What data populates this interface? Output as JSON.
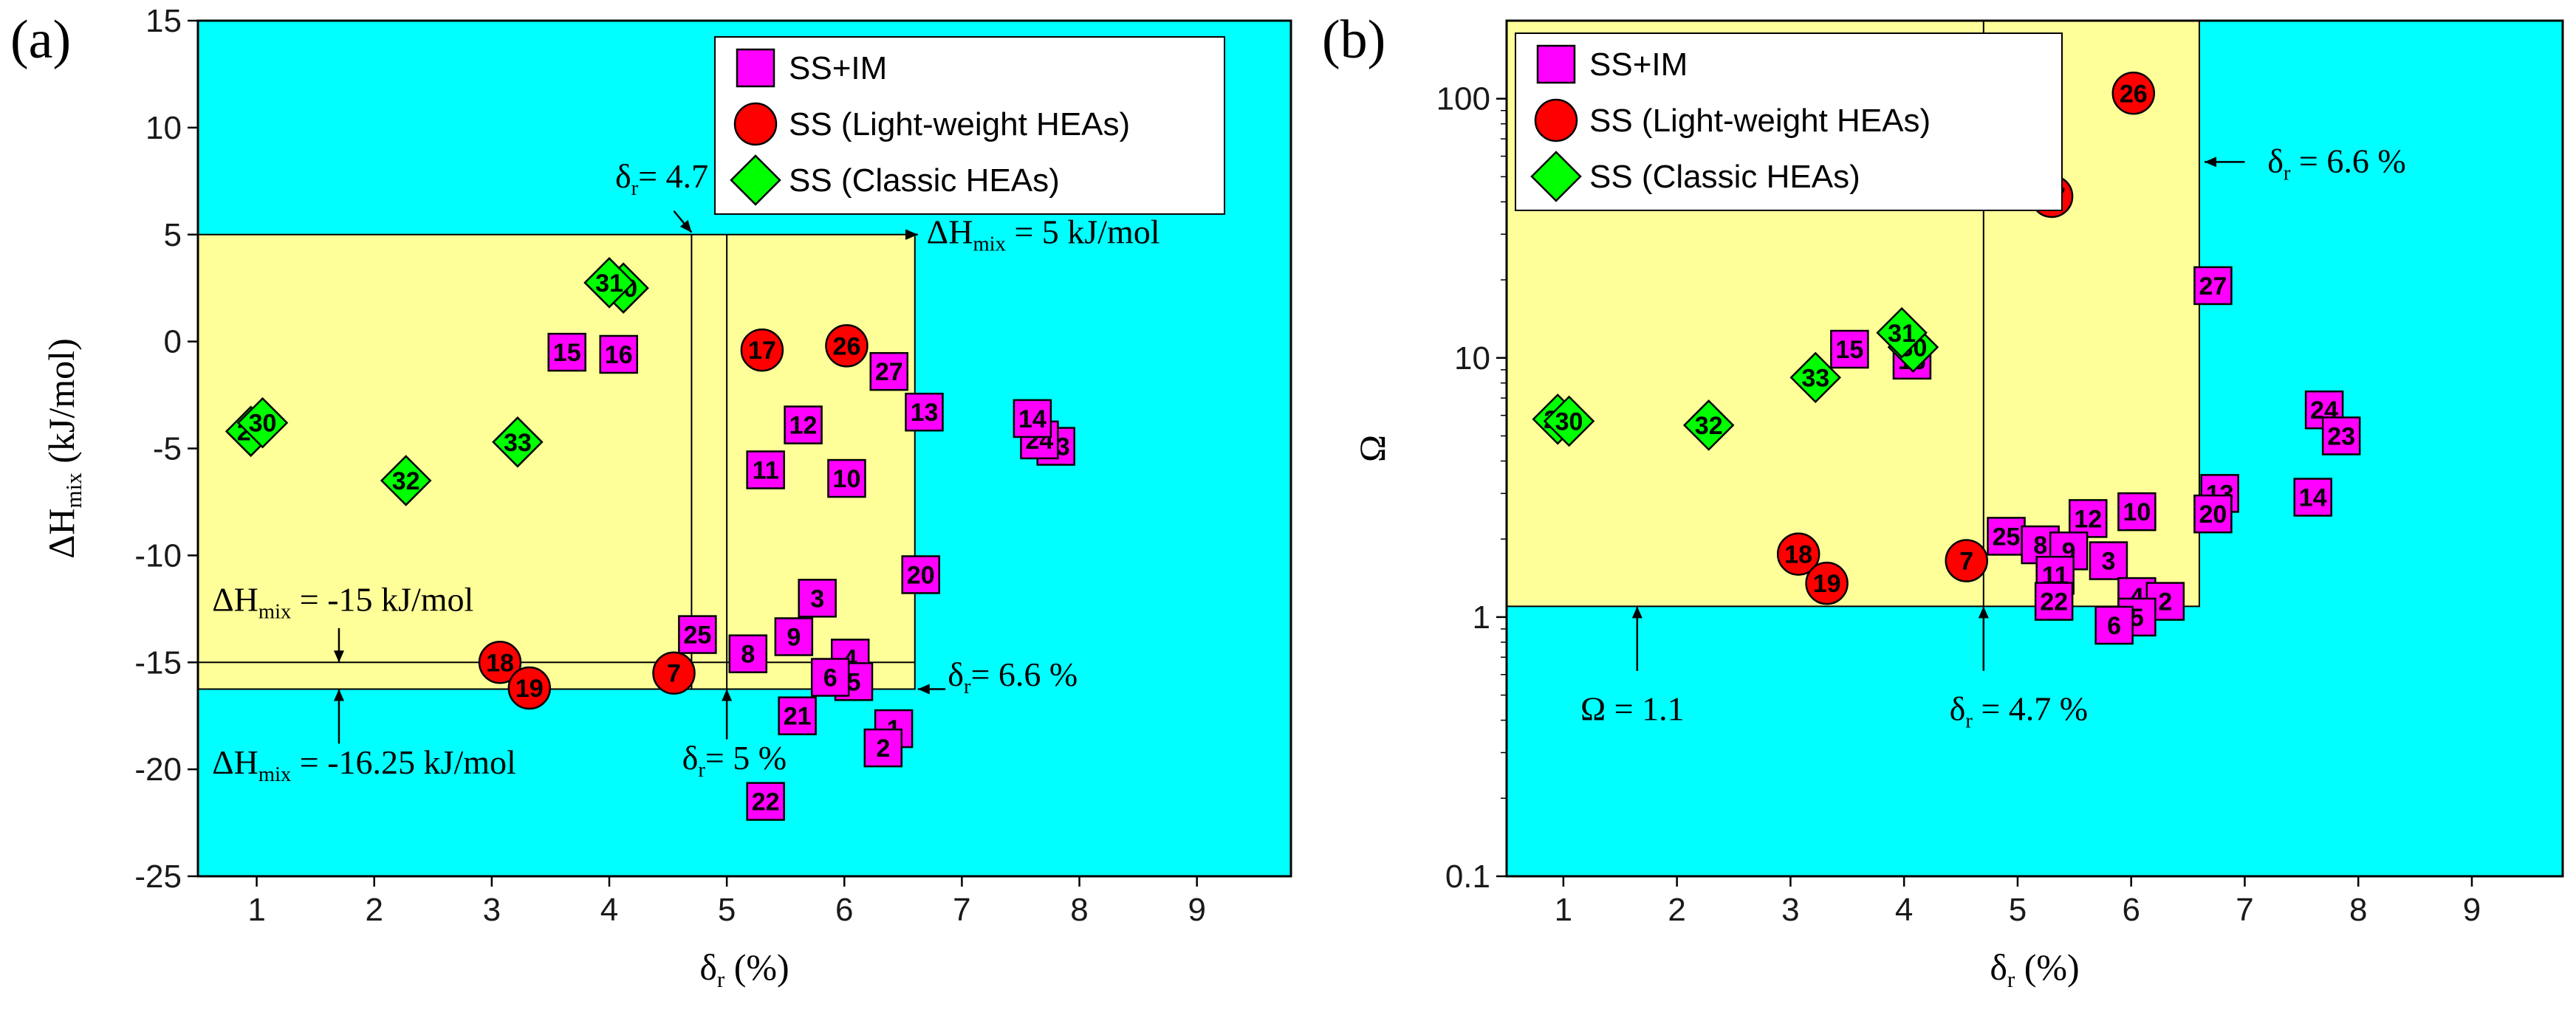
{
  "chart_data": [
    {
      "id": "a",
      "type": "scatter",
      "panel_label": "(a)",
      "xlabel_main": "δ",
      "xlabel_sub": "r",
      "xlabel_tail": " (%)",
      "ylabel_main": "ΔH",
      "ylabel_sub": "mix",
      "ylabel_tail": " (kJ/mol)",
      "xlim": [
        0.5,
        9.8
      ],
      "ylim": [
        -25,
        15
      ],
      "yscale": "linear",
      "xticks": [
        1,
        2,
        3,
        4,
        5,
        6,
        7,
        8,
        9
      ],
      "yticks": [
        15,
        10,
        5,
        0,
        -5,
        -10,
        -15,
        -20,
        -25
      ],
      "colors": {
        "background": "#00ffff",
        "region": "#ffff99",
        "ss_im": "#ff00ff",
        "ss_light": "#ff0000",
        "ss_classic": "#00ff00"
      },
      "legend": {
        "position": "top-right",
        "entries": [
          {
            "key": "ss_im",
            "label": "SS+IM",
            "marker": "square"
          },
          {
            "key": "ss_light",
            "label": "SS (Light-weight HEAs)",
            "marker": "circle"
          },
          {
            "key": "ss_classic",
            "label": "SS (Classic HEAs)",
            "marker": "diamond"
          }
        ]
      },
      "region": {
        "x": [
          0.5,
          6.6
        ],
        "y": [
          -16.25,
          5
        ]
      },
      "lines": [
        {
          "orient": "v",
          "value": 4.7,
          "range": [
            -16.25,
            5
          ]
        },
        {
          "orient": "v",
          "value": 5.0,
          "range": [
            -16.25,
            5
          ]
        },
        {
          "orient": "h",
          "value": -15,
          "range": [
            0.5,
            6.6
          ]
        }
      ],
      "annotations": [
        {
          "id": "dr47",
          "main": "δ",
          "sub": "r",
          "tail": "= 4.7 %",
          "at": [
            4.05,
            7.2
          ],
          "arrow_from": [
            4.55,
            6.1
          ],
          "arrow_to": [
            4.7,
            5.1
          ]
        },
        {
          "id": "dh5",
          "main": "ΔH",
          "sub": "mix",
          "tail": " = 5 kJ/mol",
          "at": [
            6.7,
            4.6
          ],
          "arrow_from": [
            6.6,
            5.0
          ],
          "arrow_to": [
            6.62,
            5.0
          ],
          "arrow_left_to": 6.6
        },
        {
          "id": "dh15",
          "main": "ΔH",
          "sub": "mix",
          "tail": " = -15 kJ/mol",
          "at": [
            0.62,
            -12.6
          ],
          "arrow_from": [
            1.7,
            -13.4
          ],
          "arrow_to": [
            1.7,
            -15
          ]
        },
        {
          "id": "dh1625",
          "main": "ΔH",
          "sub": "mix",
          "tail": " = -16.25 kJ/mol",
          "at": [
            0.62,
            -20.2
          ],
          "arrow_from": [
            1.7,
            -18.8
          ],
          "arrow_to": [
            1.7,
            -16.25
          ]
        },
        {
          "id": "dr5",
          "main": "δ",
          "sub": "r",
          "tail": "= 5 %",
          "at": [
            4.62,
            -20.0
          ],
          "arrow_from": [
            5.0,
            -18.6
          ],
          "arrow_to": [
            5.0,
            -16.25
          ]
        },
        {
          "id": "dr66",
          "main": "δ",
          "sub": "r",
          "tail": "= 6.6 %",
          "at": [
            6.88,
            -16.1
          ],
          "arrow_from": [
            6.86,
            -16.25
          ],
          "arrow_left_to": 6.6
        }
      ],
      "points": [
        {
          "label": "29",
          "x": 0.95,
          "y": -4.2,
          "cls": "ss_classic"
        },
        {
          "label": "30",
          "x": 1.05,
          "y": -3.8,
          "cls": "ss_classic"
        },
        {
          "label": "32",
          "x": 2.27,
          "y": -6.5,
          "cls": "ss_classic"
        },
        {
          "label": "33",
          "x": 3.22,
          "y": -4.7,
          "cls": "ss_classic"
        },
        {
          "label": "15",
          "x": 3.64,
          "y": -0.5,
          "cls": "ss_im"
        },
        {
          "label": "16",
          "x": 4.08,
          "y": -0.6,
          "cls": "ss_im"
        },
        {
          "label": "30",
          "x": 4.12,
          "y": 2.5,
          "cls": "ss_classic"
        },
        {
          "label": "31",
          "x": 4.0,
          "y": 2.75,
          "cls": "ss_classic"
        },
        {
          "label": "17",
          "x": 5.3,
          "y": -0.4,
          "cls": "ss_light"
        },
        {
          "label": "26",
          "x": 6.02,
          "y": -0.2,
          "cls": "ss_light"
        },
        {
          "label": "27",
          "x": 6.38,
          "y": -1.4,
          "cls": "ss_im"
        },
        {
          "label": "13",
          "x": 6.68,
          "y": -3.3,
          "cls": "ss_im"
        },
        {
          "label": "12",
          "x": 5.65,
          "y": -3.9,
          "cls": "ss_im"
        },
        {
          "label": "11",
          "x": 5.33,
          "y": -6.0,
          "cls": "ss_im"
        },
        {
          "label": "10",
          "x": 6.02,
          "y": -6.4,
          "cls": "ss_im"
        },
        {
          "label": "23",
          "x": 7.8,
          "y": -4.9,
          "cls": "ss_im"
        },
        {
          "label": "24",
          "x": 7.66,
          "y": -4.6,
          "cls": "ss_im"
        },
        {
          "label": "14",
          "x": 7.6,
          "y": -3.6,
          "cls": "ss_im"
        },
        {
          "label": "20",
          "x": 6.65,
          "y": -10.9,
          "cls": "ss_im"
        },
        {
          "label": "3",
          "x": 5.77,
          "y": -12.0,
          "cls": "ss_im"
        },
        {
          "label": "25",
          "x": 4.75,
          "y": -13.7,
          "cls": "ss_im"
        },
        {
          "label": "9",
          "x": 5.57,
          "y": -13.8,
          "cls": "ss_im"
        },
        {
          "label": "8",
          "x": 5.18,
          "y": -14.6,
          "cls": "ss_im"
        },
        {
          "label": "4",
          "x": 6.05,
          "y": -14.8,
          "cls": "ss_im"
        },
        {
          "label": "5",
          "x": 6.08,
          "y": -15.9,
          "cls": "ss_im"
        },
        {
          "label": "6",
          "x": 5.88,
          "y": -15.7,
          "cls": "ss_im"
        },
        {
          "label": "21",
          "x": 5.6,
          "y": -17.5,
          "cls": "ss_im"
        },
        {
          "label": "1",
          "x": 6.42,
          "y": -18.1,
          "cls": "ss_im"
        },
        {
          "label": "2",
          "x": 6.33,
          "y": -19.0,
          "cls": "ss_im"
        },
        {
          "label": "22",
          "x": 5.33,
          "y": -21.5,
          "cls": "ss_im"
        },
        {
          "label": "7",
          "x": 4.55,
          "y": -15.5,
          "cls": "ss_light"
        },
        {
          "label": "18",
          "x": 3.07,
          "y": -15.0,
          "cls": "ss_light"
        },
        {
          "label": "19",
          "x": 3.32,
          "y": -16.2,
          "cls": "ss_light"
        }
      ]
    },
    {
      "id": "b",
      "type": "scatter",
      "panel_label": "(b)",
      "xlabel_main": "δ",
      "xlabel_sub": "r",
      "xlabel_tail": " (%)",
      "ylabel_main": "Ω",
      "ylabel_sub": "",
      "ylabel_tail": "",
      "xlim": [
        0.5,
        9.8
      ],
      "ylim": [
        0.1,
        200
      ],
      "yscale": "log",
      "xticks": [
        1,
        2,
        3,
        4,
        5,
        6,
        7,
        8,
        9
      ],
      "yticks": [
        100,
        10,
        1,
        0.1
      ],
      "colors": {
        "background": "#00ffff",
        "region": "#ffff99",
        "ss_im": "#ff00ff",
        "ss_light": "#ff0000",
        "ss_classic": "#00ff00"
      },
      "legend": {
        "position": "top-left",
        "entries": [
          {
            "key": "ss_im",
            "label": "SS+IM",
            "marker": "square"
          },
          {
            "key": "ss_light",
            "label": "SS (Light-weight HEAs)",
            "marker": "circle"
          },
          {
            "key": "ss_classic",
            "label": "SS (Classic HEAs)",
            "marker": "diamond"
          }
        ]
      },
      "region": {
        "x": [
          0.5,
          6.6
        ],
        "y": [
          1.1,
          200
        ]
      },
      "lines": [
        {
          "orient": "v",
          "value": 4.7,
          "range": [
            1.1,
            200
          ]
        }
      ],
      "annotations": [
        {
          "id": "dr66b",
          "main": "δ",
          "sub": "r",
          "tail": " = 6.6 %",
          "at": [
            7.2,
            52
          ],
          "arrow_from": [
            7.0,
            57
          ],
          "arrow_left_to": 6.62
        },
        {
          "id": "om11",
          "main": "Ω",
          "sub": "",
          "tail": " = 1.1",
          "at": [
            1.15,
            0.4
          ],
          "arrow_from": [
            1.65,
            0.62
          ],
          "arrow_to": [
            1.65,
            1.1
          ]
        },
        {
          "id": "dr47b",
          "main": "δ",
          "sub": "r",
          "tail": " = 4.7 %",
          "at": [
            4.4,
            0.4
          ],
          "arrow_from": [
            4.7,
            0.62
          ],
          "arrow_to": [
            4.7,
            1.1
          ]
        }
      ],
      "points": [
        {
          "label": "29",
          "x": 0.95,
          "y": 5.8,
          "cls": "ss_classic"
        },
        {
          "label": "30",
          "x": 1.05,
          "y": 5.7,
          "cls": "ss_classic"
        },
        {
          "label": "32",
          "x": 2.28,
          "y": 5.5,
          "cls": "ss_classic"
        },
        {
          "label": "33",
          "x": 3.22,
          "y": 8.4,
          "cls": "ss_classic"
        },
        {
          "label": "15",
          "x": 3.52,
          "y": 10.8,
          "cls": "ss_im"
        },
        {
          "label": "16",
          "x": 4.07,
          "y": 9.8,
          "cls": "ss_im"
        },
        {
          "label": "30",
          "x": 4.08,
          "y": 11.0,
          "cls": "ss_classic"
        },
        {
          "label": "31",
          "x": 3.98,
          "y": 12.5,
          "cls": "ss_classic"
        },
        {
          "label": "26",
          "x": 6.02,
          "y": 105,
          "cls": "ss_light"
        },
        {
          "label": "17",
          "x": 5.3,
          "y": 42,
          "cls": "ss_light"
        },
        {
          "label": "27",
          "x": 6.72,
          "y": 19,
          "cls": "ss_im"
        },
        {
          "label": "24",
          "x": 7.7,
          "y": 6.3,
          "cls": "ss_im"
        },
        {
          "label": "23",
          "x": 7.85,
          "y": 5.0,
          "cls": "ss_im"
        },
        {
          "label": "14",
          "x": 7.6,
          "y": 2.9,
          "cls": "ss_im"
        },
        {
          "label": "13",
          "x": 6.78,
          "y": 3.0,
          "cls": "ss_im"
        },
        {
          "label": "20",
          "x": 6.72,
          "y": 2.5,
          "cls": "ss_im"
        },
        {
          "label": "10",
          "x": 6.05,
          "y": 2.55,
          "cls": "ss_im"
        },
        {
          "label": "12",
          "x": 5.62,
          "y": 2.4,
          "cls": "ss_im"
        },
        {
          "label": "25",
          "x": 4.9,
          "y": 2.05,
          "cls": "ss_im"
        },
        {
          "label": "8",
          "x": 5.2,
          "y": 1.9,
          "cls": "ss_im"
        },
        {
          "label": "9",
          "x": 5.45,
          "y": 1.8,
          "cls": "ss_im"
        },
        {
          "label": "3",
          "x": 5.8,
          "y": 1.65,
          "cls": "ss_im"
        },
        {
          "label": "11",
          "x": 5.33,
          "y": 1.45,
          "cls": "ss_im"
        },
        {
          "label": "22",
          "x": 5.32,
          "y": 1.15,
          "cls": "ss_im"
        },
        {
          "label": "4",
          "x": 6.05,
          "y": 1.2,
          "cls": "ss_im"
        },
        {
          "label": "2",
          "x": 6.3,
          "y": 1.15,
          "cls": "ss_im"
        },
        {
          "label": "5",
          "x": 6.05,
          "y": 1.0,
          "cls": "ss_im"
        },
        {
          "label": "6",
          "x": 5.85,
          "y": 0.93,
          "cls": "ss_im"
        },
        {
          "label": "18",
          "x": 3.07,
          "y": 1.75,
          "cls": "ss_light"
        },
        {
          "label": "19",
          "x": 3.32,
          "y": 1.35,
          "cls": "ss_light"
        },
        {
          "label": "7",
          "x": 4.55,
          "y": 1.65,
          "cls": "ss_light"
        }
      ]
    }
  ]
}
